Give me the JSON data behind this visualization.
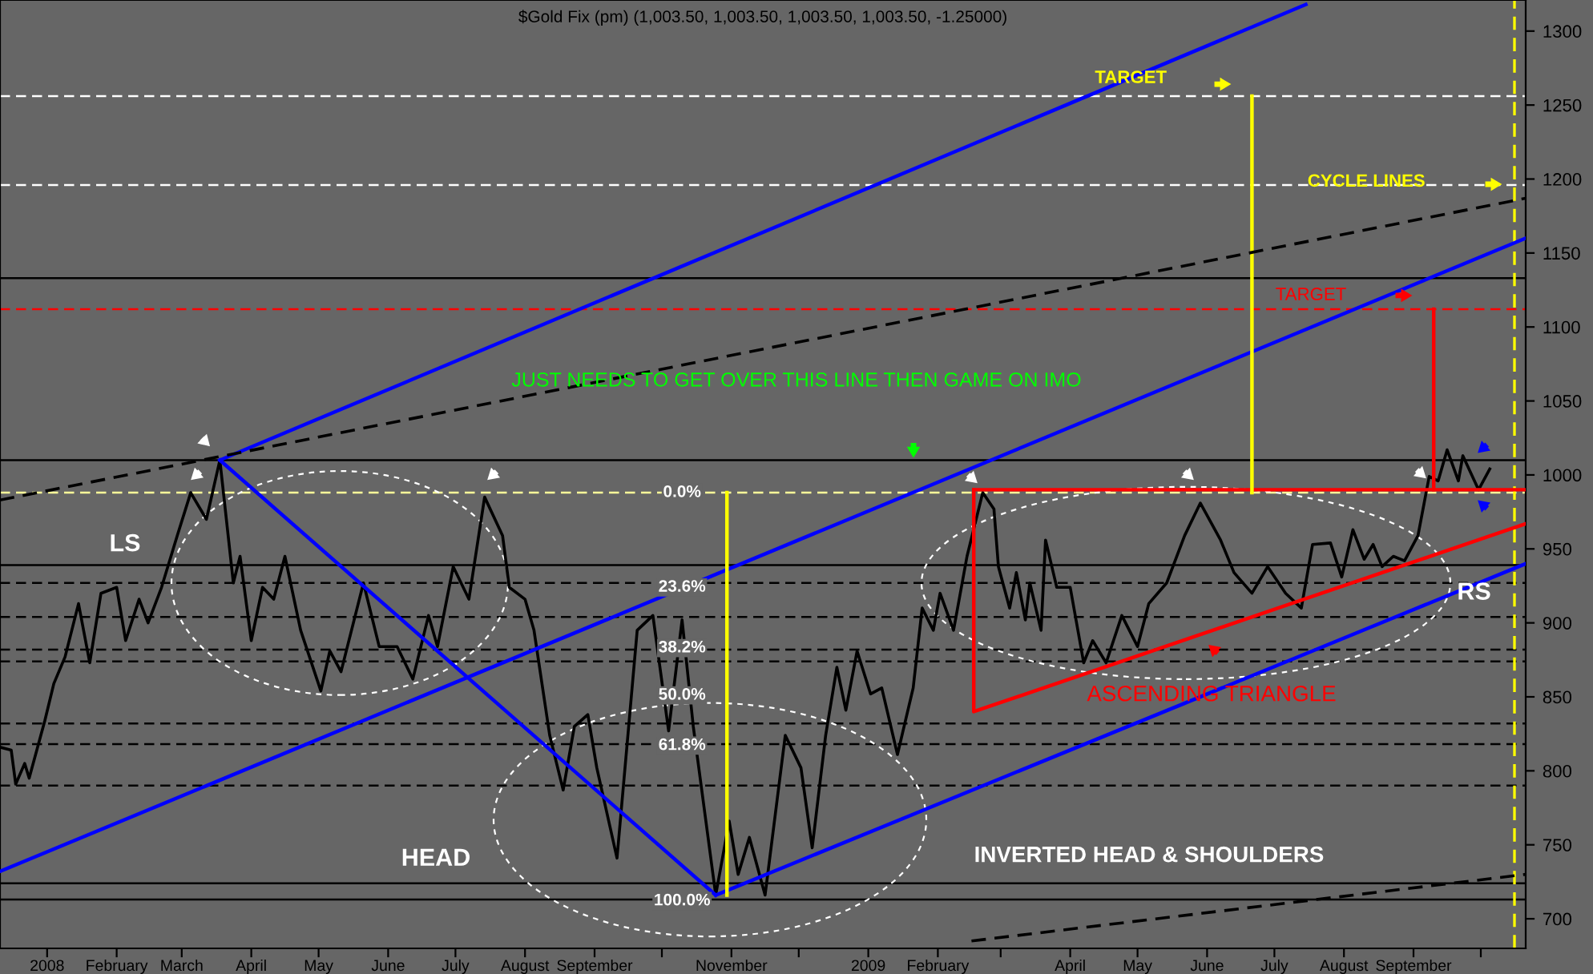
{
  "chart_data": {
    "type": "line",
    "title": "$Gold Fix (pm) (1,003.50, 1,003.50, 1,003.50, 1,003.50, -1.25000)",
    "xlim": [
      "2007-12-11",
      "2009-10-21"
    ],
    "xticks": [
      {
        "value": "2008-01-01",
        "label": "2008"
      },
      {
        "value": "2008-02-01",
        "label": "February"
      },
      {
        "value": "2008-03-01",
        "label": "March"
      },
      {
        "value": "2008-04-01",
        "label": "April"
      },
      {
        "value": "2008-05-01",
        "label": "May"
      },
      {
        "value": "2008-06-01",
        "label": "June"
      },
      {
        "value": "2008-07-01",
        "label": "July"
      },
      {
        "value": "2008-08-01",
        "label": "August"
      },
      {
        "value": "2008-09-01",
        "label": "September"
      },
      {
        "value": "2008-10-01",
        "label": null
      },
      {
        "value": "2008-11-01",
        "label": "November"
      },
      {
        "value": "2008-12-01",
        "label": null
      },
      {
        "value": "2009-01-01",
        "label": "2009"
      },
      {
        "value": "2009-02-01",
        "label": "February"
      },
      {
        "value": "2009-03-01",
        "label": null
      },
      {
        "value": "2009-04-01",
        "label": "April"
      },
      {
        "value": "2009-05-01",
        "label": "May"
      },
      {
        "value": "2009-06-01",
        "label": "June"
      },
      {
        "value": "2009-07-01",
        "label": "July"
      },
      {
        "value": "2009-08-01",
        "label": "August"
      },
      {
        "value": "2009-09-01",
        "label": "September"
      },
      {
        "value": "2009-10-01",
        "label": null
      }
    ],
    "ylim": [
      680,
      1321
    ],
    "yticks": [
      700,
      750,
      800,
      850,
      900,
      950,
      1000,
      1050,
      1100,
      1150,
      1200,
      1250,
      1300
    ],
    "grid": false,
    "legend": false,
    "marker": "none",
    "series": [
      {
        "color": "#000000",
        "x": [
          "2007-12-11",
          "2007-12-16",
          "2007-12-18",
          "2007-12-22",
          "2007-12-24",
          "2007-12-31",
          "2008-01-04",
          "2008-01-09",
          "2008-01-15",
          "2008-01-20",
          "2008-01-25",
          "2008-02-01",
          "2008-02-05",
          "2008-02-11",
          "2008-02-15",
          "2008-02-21",
          "2008-02-28",
          "2008-03-05",
          "2008-03-12",
          "2008-03-18",
          "2008-03-24",
          "2008-03-27",
          "2008-04-01",
          "2008-04-06",
          "2008-04-11",
          "2008-04-16",
          "2008-04-23",
          "2008-05-02",
          "2008-05-06",
          "2008-05-11",
          "2008-05-21",
          "2008-05-28",
          "2008-06-05",
          "2008-06-12",
          "2008-06-19",
          "2008-06-23",
          "2008-06-30",
          "2008-07-07",
          "2008-07-14",
          "2008-07-22",
          "2008-07-25",
          "2008-08-01",
          "2008-08-05",
          "2008-08-12",
          "2008-08-18",
          "2008-08-23",
          "2008-08-29",
          "2008-09-02",
          "2008-09-11",
          "2008-09-20",
          "2008-09-27",
          "2008-10-04",
          "2008-10-10",
          "2008-10-15",
          "2008-10-25",
          "2008-10-31",
          "2008-11-04",
          "2008-11-09",
          "2008-11-16",
          "2008-11-25",
          "2008-12-02",
          "2008-12-07",
          "2008-12-13",
          "2008-12-18",
          "2008-12-22",
          "2008-12-27",
          "2009-01-02",
          "2009-01-07",
          "2009-01-14",
          "2009-01-21",
          "2009-01-25",
          "2009-01-30",
          "2009-02-02",
          "2009-02-08",
          "2009-02-14",
          "2009-02-21",
          "2009-02-26",
          "2009-02-28",
          "2009-03-05",
          "2009-03-08",
          "2009-03-12",
          "2009-03-14",
          "2009-03-19",
          "2009-03-21",
          "2009-03-26",
          "2009-04-01",
          "2009-04-07",
          "2009-04-11",
          "2009-04-17",
          "2009-04-24",
          "2009-05-01",
          "2009-05-06",
          "2009-05-14",
          "2009-05-22",
          "2009-05-29",
          "2009-06-07",
          "2009-06-13",
          "2009-06-21",
          "2009-06-28",
          "2009-07-06",
          "2009-07-13",
          "2009-07-18",
          "2009-07-26",
          "2009-07-31",
          "2009-08-05",
          "2009-08-10",
          "2009-08-14",
          "2009-08-18",
          "2009-08-23",
          "2009-08-28",
          "2009-09-03",
          "2009-09-08",
          "2009-09-12",
          "2009-09-16",
          "2009-09-21",
          "2009-09-23",
          "2009-09-30",
          "2009-10-05"
        ],
        "values": [
          816,
          814,
          791,
          805,
          795,
          834,
          859,
          877,
          913,
          873,
          920,
          924,
          888,
          916,
          900,
          924,
          959,
          988,
          970,
          1010,
          927,
          945,
          888,
          924,
          916,
          945,
          895,
          854,
          881,
          867,
          927,
          884,
          884,
          862,
          905,
          884,
          938,
          916,
          985,
          959,
          924,
          916,
          895,
          824,
          787,
          830,
          838,
          802,
          741,
          895,
          905,
          827,
          902,
          830,
          716,
          766,
          730,
          755,
          716,
          824,
          802,
          748,
          824,
          870,
          841,
          881,
          852,
          856,
          811,
          856,
          910,
          895,
          920,
          895,
          945,
          988,
          977,
          938,
          910,
          934,
          902,
          927,
          895,
          956,
          924,
          924,
          873,
          888,
          873,
          905,
          884,
          913,
          927,
          959,
          981,
          956,
          934,
          920,
          938,
          920,
          910,
          953,
          954,
          931,
          963,
          943,
          953,
          938,
          945,
          942,
          959,
          999,
          996,
          1017,
          996,
          1013,
          990,
          1004
        ]
      },
      {
        "type": "line",
        "color": "#0000ff",
        "x": [
          "2008-03-18",
          "2009-07-15"
        ],
        "values": [
          1010,
          1318
        ]
      },
      {
        "type": "line",
        "color": "#0000ff",
        "x": [
          "2007-12-11",
          "2009-10-21"
        ],
        "values": [
          732,
          1160
        ]
      },
      {
        "type": "line",
        "color": "#0000ff",
        "x": [
          "2008-10-25",
          "2009-10-21"
        ],
        "values": [
          716,
          940
        ]
      },
      {
        "type": "line",
        "color": "#0000ff",
        "x": [
          "2008-03-18",
          "2008-10-25"
        ],
        "values": [
          1010,
          716
        ]
      },
      {
        "type": "line",
        "color": "#ff0000",
        "x": [
          "2009-02-17",
          "2009-02-17",
          "2009-10-21"
        ],
        "values": [
          990,
          840,
          967
        ]
      },
      {
        "type": "line",
        "color": "#ff0000",
        "x": [
          "2009-02-17",
          "2009-10-21"
        ],
        "values": [
          990,
          990
        ]
      },
      {
        "type": "line",
        "color": "#ff0000",
        "x": [
          "2009-09-10",
          "2009-09-10"
        ],
        "values": [
          990,
          1112
        ]
      },
      {
        "type": "line",
        "color": "#ffff00",
        "x": [
          "2008-10-30",
          "2008-10-30"
        ],
        "values": [
          988,
          716
        ]
      },
      {
        "type": "line",
        "color": "#ffff00",
        "x": [
          "2009-06-21",
          "2009-06-21"
        ],
        "values": [
          1256,
          988
        ]
      },
      {
        "type": "line",
        "color": "#000000",
        "line_style": "dashed",
        "x": [
          "2007-12-11",
          "2009-10-21"
        ],
        "values": [
          983,
          1187
        ]
      },
      {
        "type": "line",
        "color": "#000000",
        "line_style": "dashed",
        "x": [
          "2009-02-16",
          "2009-10-21"
        ],
        "values": [
          685,
          730
        ]
      }
    ],
    "ref_lines": [
      {
        "axis": "y",
        "value": 1256,
        "color": "#ffffff",
        "line_style": "dashed"
      },
      {
        "axis": "y",
        "value": 1196,
        "color": "#ffffff",
        "line_style": "dashed"
      },
      {
        "axis": "y",
        "value": 1133,
        "color": "#000000",
        "line_style": "solid"
      },
      {
        "axis": "y",
        "value": 1112,
        "color": "#ff0000",
        "line_style": "dashed"
      },
      {
        "axis": "y",
        "value": 1010,
        "color": "#000000",
        "line_style": "solid"
      },
      {
        "axis": "y",
        "value": 988,
        "color": "#ffff99",
        "line_style": "dashed"
      },
      {
        "axis": "y",
        "value": 939,
        "color": "#000000",
        "line_style": "solid"
      },
      {
        "axis": "y",
        "value": 927,
        "color": "#000000",
        "line_style": "dashed"
      },
      {
        "axis": "y",
        "value": 904,
        "color": "#000000",
        "line_style": "dashed"
      },
      {
        "axis": "y",
        "value": 882,
        "color": "#000000",
        "line_style": "dashed"
      },
      {
        "axis": "y",
        "value": 874,
        "color": "#000000",
        "line_style": "dashed"
      },
      {
        "axis": "y",
        "value": 832,
        "color": "#000000",
        "line_style": "dashed"
      },
      {
        "axis": "y",
        "value": 818,
        "color": "#000000",
        "line_style": "dashed"
      },
      {
        "axis": "y",
        "value": 790,
        "color": "#000000",
        "line_style": "dashed"
      },
      {
        "axis": "y",
        "value": 724,
        "color": "#000000",
        "line_style": "solid"
      },
      {
        "axis": "y",
        "value": 713,
        "color": "#000000",
        "line_style": "solid"
      },
      {
        "axis": "x",
        "value": "2009-10-16",
        "color": "#ffff00",
        "line_style": "dashed"
      }
    ],
    "annotations": [
      "LS",
      "HEAD",
      {
        "text": "RS",
        "x": "2009-09-28",
        "y": 920
      },
      "INVERTED HEAD & SHOULDERS",
      {
        "text": "ASCENDING TRIANGLE",
        "x": "2009-06-03",
        "y": 851
      },
      "JUST NEEDS TO GET OVER THIS LINE THEN GAME ON IMO",
      {
        "text": "TARGET",
        "x": "2009-04-28",
        "y": 1268
      },
      {
        "text": "CYCLE LINES",
        "x": "2009-08-11",
        "y": 1198
      },
      "TARGET",
      {
        "text": "0.0%",
        "x": "2008-10-10",
        "y": 988
      },
      {
        "text": "23.6%",
        "x": "2008-10-10",
        "y": 924
      },
      {
        "text": "38.2%",
        "x": "2008-10-10",
        "y": 883
      },
      {
        "text": "50.0%",
        "x": "2008-10-10",
        "y": 851
      },
      {
        "text": "61.8%",
        "x": "2008-10-10",
        "y": 817
      },
      {
        "text": "100.0%",
        "x": "2008-10-10",
        "y": 712
      }
    ]
  }
}
